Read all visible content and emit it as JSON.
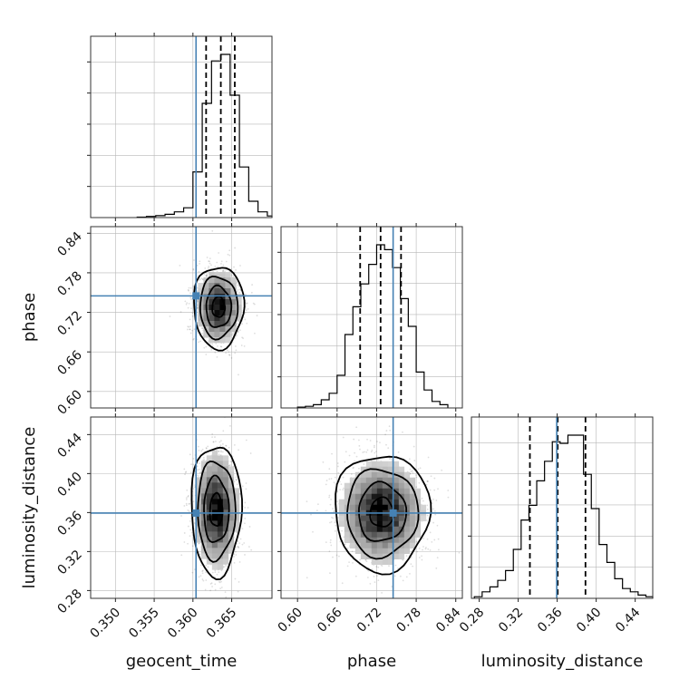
{
  "chart_data": {
    "type": "corner",
    "parameters": [
      "geocent_time",
      "phase",
      "luminosity_distance"
    ],
    "ranges": {
      "geocent_time": [
        0.3468,
        0.3702
      ],
      "phase": [
        0.575,
        0.85
      ],
      "luminosity_distance": [
        0.272,
        0.458
      ]
    },
    "ticks": {
      "geocent_time": [
        "0.350",
        "0.355",
        "0.360",
        "0.365"
      ],
      "phase": [
        "0.60",
        "0.66",
        "0.72",
        "0.78",
        "0.84"
      ],
      "luminosity_distance": [
        "0.28",
        "0.32",
        "0.36",
        "0.40",
        "0.44"
      ]
    },
    "truths": {
      "geocent_time": 0.3604,
      "phase": 0.745,
      "luminosity_distance": 0.3595
    },
    "quantiles": {
      "geocent_time": [
        0.3617,
        0.3636,
        0.3654
      ],
      "phase": [
        0.695,
        0.726,
        0.757
      ],
      "luminosity_distance": [
        0.332,
        0.3605,
        0.389
      ]
    },
    "histograms": {
      "geocent_time": {
        "edges": [
          0.3528,
          0.354,
          0.3552,
          0.3564,
          0.3576,
          0.3588,
          0.36,
          0.3612,
          0.3624,
          0.3636,
          0.3648,
          0.366,
          0.3672,
          0.3684,
          0.3696,
          0.3702
        ],
        "counts": [
          0.003,
          0.007,
          0.012,
          0.02,
          0.035,
          0.06,
          0.28,
          0.7,
          0.96,
          1.0,
          0.75,
          0.31,
          0.1,
          0.035,
          0.01
        ]
      },
      "phase": {
        "edges": [
          0.6,
          0.612,
          0.624,
          0.636,
          0.648,
          0.66,
          0.672,
          0.684,
          0.696,
          0.708,
          0.72,
          0.732,
          0.744,
          0.756,
          0.768,
          0.78,
          0.792,
          0.804,
          0.816,
          0.828
        ],
        "counts": [
          0.005,
          0.01,
          0.02,
          0.05,
          0.09,
          0.2,
          0.45,
          0.62,
          0.76,
          0.88,
          1.0,
          0.97,
          0.86,
          0.67,
          0.5,
          0.22,
          0.11,
          0.04,
          0.02
        ]
      },
      "luminosity_distance": {
        "edges": [
          0.275,
          0.283,
          0.291,
          0.299,
          0.307,
          0.315,
          0.323,
          0.331,
          0.339,
          0.347,
          0.355,
          0.363,
          0.371,
          0.379,
          0.387,
          0.395,
          0.403,
          0.411,
          0.419,
          0.427,
          0.435,
          0.443,
          0.451,
          0.458
        ],
        "counts": [
          0.01,
          0.04,
          0.07,
          0.11,
          0.17,
          0.3,
          0.48,
          0.57,
          0.72,
          0.84,
          0.96,
          0.95,
          1.0,
          1.0,
          0.76,
          0.55,
          0.33,
          0.22,
          0.12,
          0.06,
          0.04,
          0.02,
          0.01
        ]
      }
    },
    "posteriors_2d": {
      "phase_vs_geocent_time": {
        "mean": [
          0.3633,
          0.728
        ],
        "sigma": [
          0.00135,
          0.026
        ],
        "contour_levels_sigma": [
          0.6,
          1.2,
          1.8,
          2.4
        ]
      },
      "luminosity_distance_vs_geocent_time": {
        "mean": [
          0.363,
          0.3625
        ],
        "sigma": [
          0.00135,
          0.028
        ],
        "contour_levels_sigma": [
          0.6,
          1.2,
          1.8,
          2.4
        ]
      },
      "luminosity_distance_vs_phase": {
        "mean": [
          0.728,
          0.36
        ],
        "sigma": [
          0.03,
          0.025
        ],
        "contour_levels_sigma": [
          0.6,
          1.2,
          1.8,
          2.4
        ]
      }
    },
    "truth_color": "#4682b4",
    "grid": true
  }
}
